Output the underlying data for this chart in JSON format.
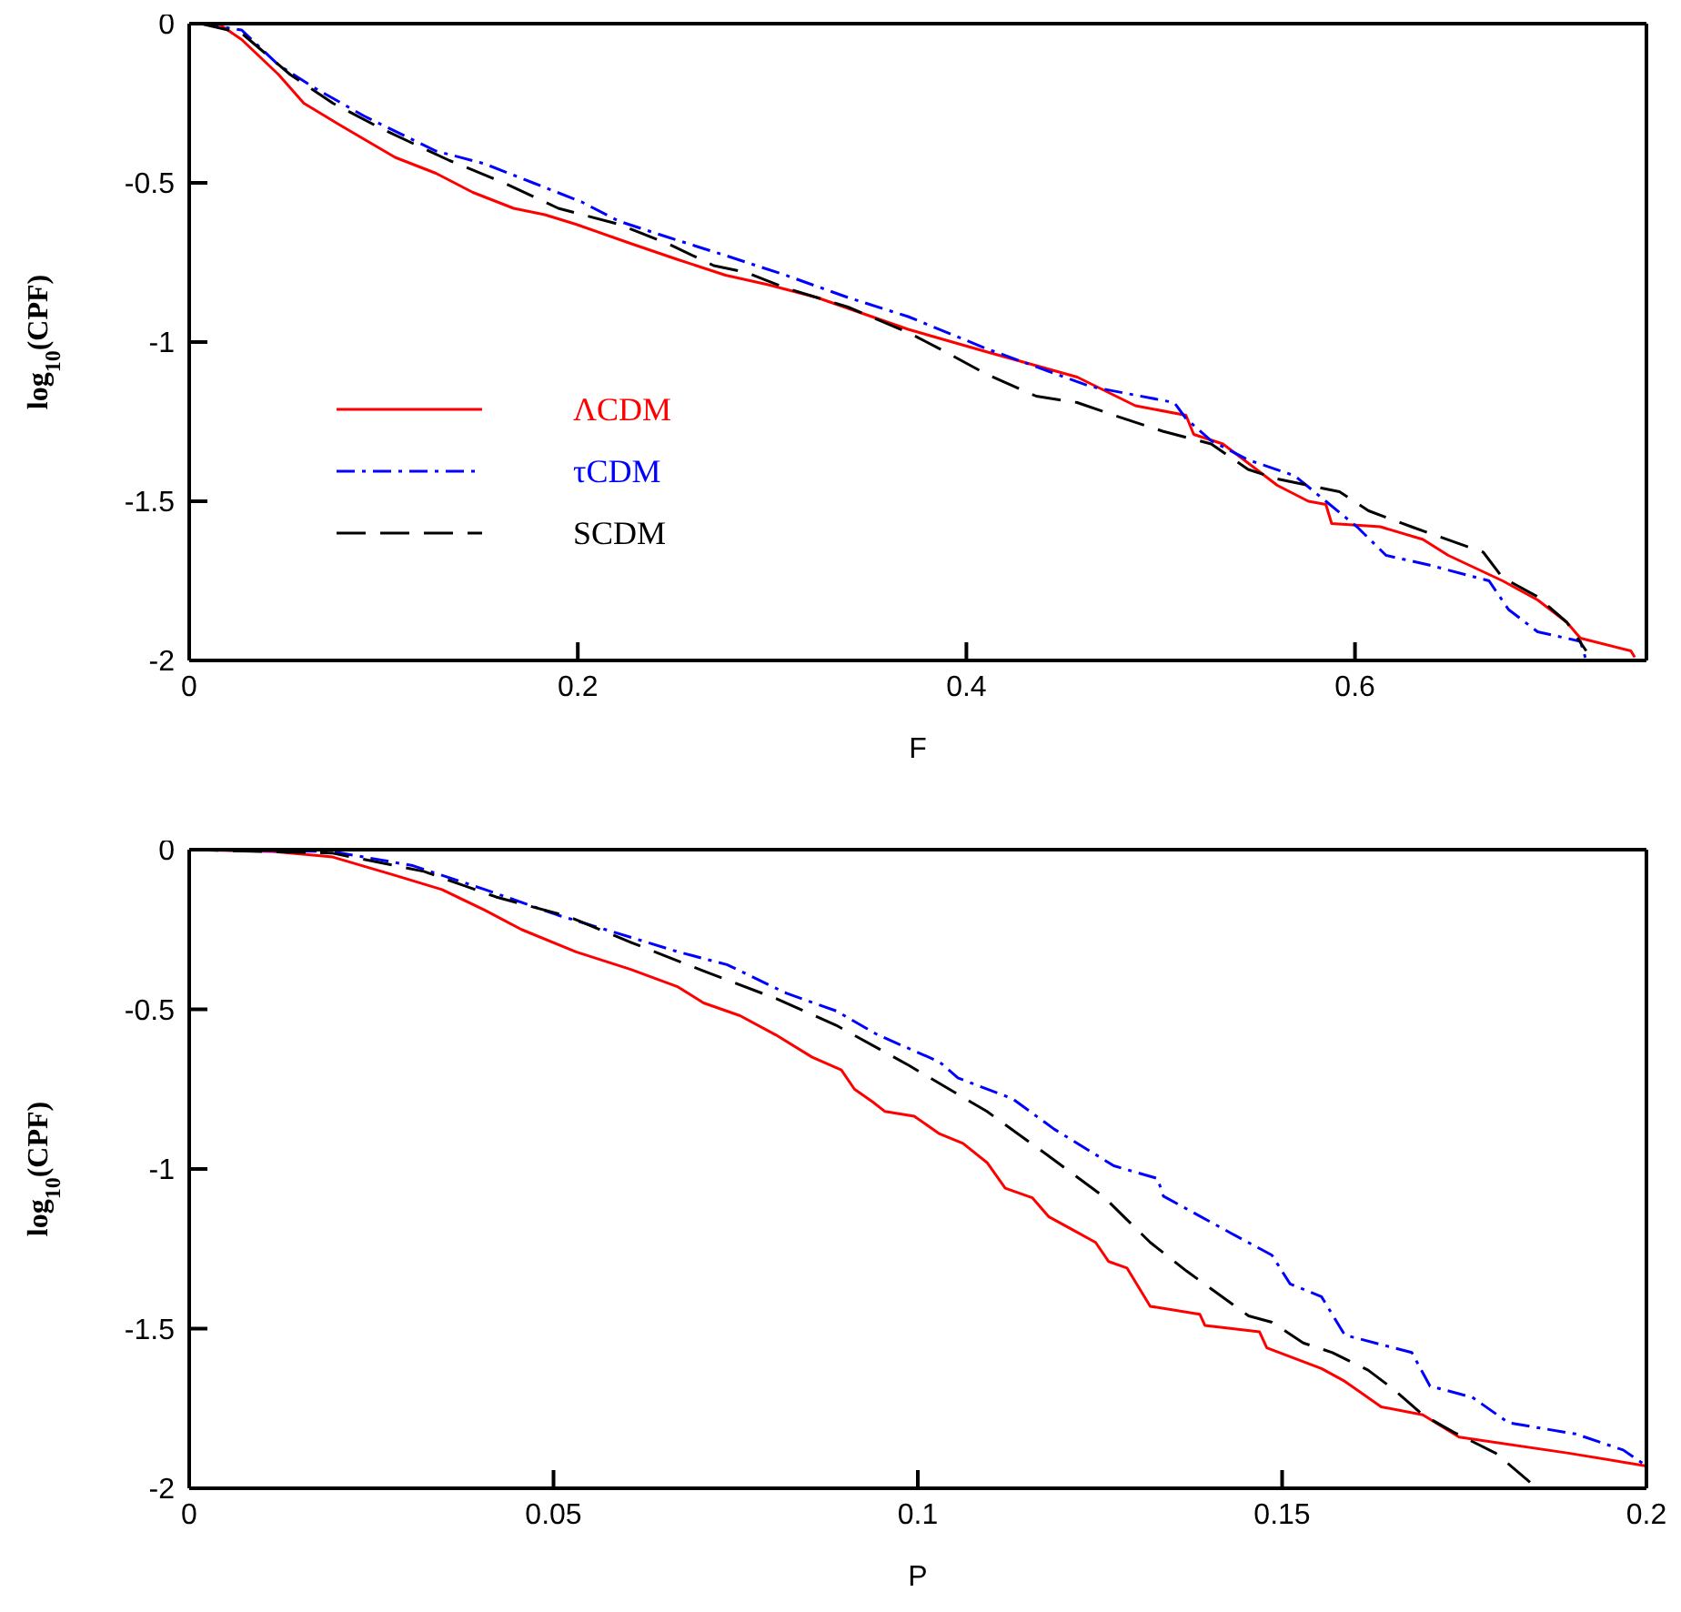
{
  "chart_data": [
    {
      "type": "line",
      "xlabel": "F",
      "ylabel": "log$_{10}$(CPF)",
      "xlim": [
        0,
        0.75
      ],
      "xticks": [
        0,
        0.2,
        0.4,
        0.6
      ],
      "ylim": [
        -2,
        0
      ],
      "yticks": [
        0,
        -0.5,
        -1,
        -1.5,
        -2
      ],
      "legend": "center left",
      "grid": false,
      "marker": "none",
      "series": [
        {
          "name": "ΛCDM",
          "color": "#ff0000",
          "line_style": "solid",
          "x": [
            0.015,
            0.027,
            0.046,
            0.059,
            0.078,
            0.106,
            0.127,
            0.146,
            0.167,
            0.183,
            0.199,
            0.227,
            0.251,
            0.276,
            0.298,
            0.323,
            0.37,
            0.41,
            0.457,
            0.487,
            0.513,
            0.517,
            0.532,
            0.545,
            0.56,
            0.576,
            0.585,
            0.588,
            0.613,
            0.635,
            0.648,
            0.669,
            0.676,
            0.694,
            0.709,
            0.716,
            0.742,
            0.744
          ],
          "values": [
            0,
            -0.05,
            -0.16,
            -0.25,
            -0.32,
            -0.42,
            -0.47,
            -0.53,
            -0.58,
            -0.6,
            -0.63,
            -0.69,
            -0.74,
            -0.79,
            -0.82,
            -0.86,
            -0.96,
            -1.03,
            -1.11,
            -1.2,
            -1.23,
            -1.29,
            -1.32,
            -1.38,
            -1.45,
            -1.5,
            -1.51,
            -1.57,
            -1.58,
            -1.62,
            -1.67,
            -1.73,
            -1.75,
            -1.81,
            -1.88,
            -1.93,
            -1.97,
            -1.99
          ]
        },
        {
          "name": "τCDM",
          "color": "#0000ff",
          "line_style": "dashdot",
          "x": [
            0.006,
            0.027,
            0.046,
            0.064,
            0.09,
            0.127,
            0.152,
            0.177,
            0.202,
            0.221,
            0.246,
            0.277,
            0.307,
            0.339,
            0.37,
            0.41,
            0.464,
            0.507,
            0.513,
            0.526,
            0.545,
            0.569,
            0.585,
            0.601,
            0.616,
            0.638,
            0.669,
            0.679,
            0.694,
            0.716,
            0.719
          ],
          "values": [
            0,
            -0.02,
            -0.13,
            -0.2,
            -0.29,
            -0.4,
            -0.44,
            -0.5,
            -0.56,
            -0.62,
            -0.67,
            -0.73,
            -0.79,
            -0.86,
            -0.92,
            -1.02,
            -1.14,
            -1.19,
            -1.24,
            -1.31,
            -1.37,
            -1.42,
            -1.5,
            -1.58,
            -1.67,
            -1.7,
            -1.75,
            -1.84,
            -1.91,
            -1.94,
            -2
          ]
        },
        {
          "name": "SCDM",
          "color": "#000000",
          "line_style": "dashed",
          "x": [
            0.006,
            0.027,
            0.052,
            0.074,
            0.099,
            0.134,
            0.162,
            0.19,
            0.221,
            0.246,
            0.27,
            0.286,
            0.307,
            0.339,
            0.37,
            0.389,
            0.41,
            0.436,
            0.457,
            0.476,
            0.501,
            0.526,
            0.545,
            0.56,
            0.592,
            0.607,
            0.629,
            0.666,
            0.676,
            0.694,
            0.709,
            0.719
          ],
          "values": [
            0,
            -0.03,
            -0.16,
            -0.25,
            -0.33,
            -0.43,
            -0.5,
            -0.58,
            -0.63,
            -0.69,
            -0.76,
            -0.78,
            -0.83,
            -0.89,
            -0.97,
            -1.03,
            -1.1,
            -1.17,
            -1.19,
            -1.23,
            -1.28,
            -1.32,
            -1.4,
            -1.43,
            -1.47,
            -1.53,
            -1.58,
            -1.66,
            -1.74,
            -1.8,
            -1.88,
            -1.97
          ]
        }
      ]
    },
    {
      "type": "line",
      "xlabel": "P",
      "ylabel": "log$_{10}$(CPF)",
      "xlim": [
        0,
        0.2
      ],
      "xticks": [
        0,
        0.05,
        0.1,
        0.15,
        0.2
      ],
      "ylim": [
        -2,
        0
      ],
      "yticks": [
        0,
        -0.5,
        -1,
        -1.5,
        -2
      ],
      "grid": false,
      "marker": "none",
      "series": [
        {
          "color": "#ff0000",
          "line_style": "solid",
          "x": [
            0,
            0.0115,
            0.0197,
            0.0282,
            0.0347,
            0.0406,
            0.0456,
            0.0531,
            0.0606,
            0.0671,
            0.0706,
            0.0756,
            0.0805,
            0.0855,
            0.0895,
            0.0913,
            0.0938,
            0.0955,
            0.0995,
            0.103,
            0.1062,
            0.1095,
            0.112,
            0.1157,
            0.118,
            0.1212,
            0.1244,
            0.1262,
            0.1287,
            0.1319,
            0.1387,
            0.1394,
            0.1469,
            0.1479,
            0.1554,
            0.1586,
            0.1636,
            0.1693,
            0.1743,
            0.1893,
            0.2
          ],
          "values": [
            0,
            -0.006,
            -0.023,
            -0.08,
            -0.125,
            -0.19,
            -0.25,
            -0.32,
            -0.375,
            -0.43,
            -0.48,
            -0.52,
            -0.58,
            -0.65,
            -0.69,
            -0.75,
            -0.79,
            -0.82,
            -0.835,
            -0.89,
            -0.92,
            -0.98,
            -1.06,
            -1.09,
            -1.15,
            -1.19,
            -1.23,
            -1.29,
            -1.31,
            -1.43,
            -1.455,
            -1.49,
            -1.51,
            -1.56,
            -1.625,
            -1.665,
            -1.745,
            -1.77,
            -1.84,
            -1.89,
            -1.93
          ]
        },
        {
          "color": "#0000ff",
          "line_style": "dashdot",
          "x": [
            0,
            0.0197,
            0.0307,
            0.0406,
            0.0506,
            0.0571,
            0.0671,
            0.0738,
            0.082,
            0.0888,
            0.0945,
            0.103,
            0.1055,
            0.113,
            0.1187,
            0.1269,
            0.1329,
            0.1337,
            0.1429,
            0.1486,
            0.1511,
            0.1554,
            0.1586,
            0.1678,
            0.1703,
            0.1761,
            0.1811,
            0.1903,
            0.1968,
            0.2
          ],
          "values": [
            0,
            -0.006,
            -0.05,
            -0.125,
            -0.205,
            -0.25,
            -0.32,
            -0.36,
            -0.45,
            -0.505,
            -0.58,
            -0.665,
            -0.715,
            -0.78,
            -0.875,
            -0.99,
            -1.03,
            -1.085,
            -1.2,
            -1.27,
            -1.36,
            -1.4,
            -1.52,
            -1.575,
            -1.68,
            -1.715,
            -1.795,
            -1.83,
            -1.88,
            -1.93
          ]
        },
        {
          "color": "#000000",
          "line_style": "dashed",
          "x": [
            0,
            0.0197,
            0.0322,
            0.0421,
            0.0521,
            0.0606,
            0.0706,
            0.0805,
            0.0888,
            0.0988,
            0.1095,
            0.118,
            0.1254,
            0.1319,
            0.1369,
            0.1454,
            0.1486,
            0.1529,
            0.1569,
            0.1618,
            0.1653,
            0.1693,
            0.1736,
            0.1793,
            0.185
          ],
          "values": [
            0,
            -0.011,
            -0.068,
            -0.148,
            -0.21,
            -0.29,
            -0.38,
            -0.466,
            -0.55,
            -0.676,
            -0.82,
            -0.96,
            -1.085,
            -1.23,
            -1.32,
            -1.46,
            -1.48,
            -1.545,
            -1.575,
            -1.63,
            -1.69,
            -1.77,
            -1.825,
            -1.89,
            -2
          ]
        }
      ]
    }
  ]
}
